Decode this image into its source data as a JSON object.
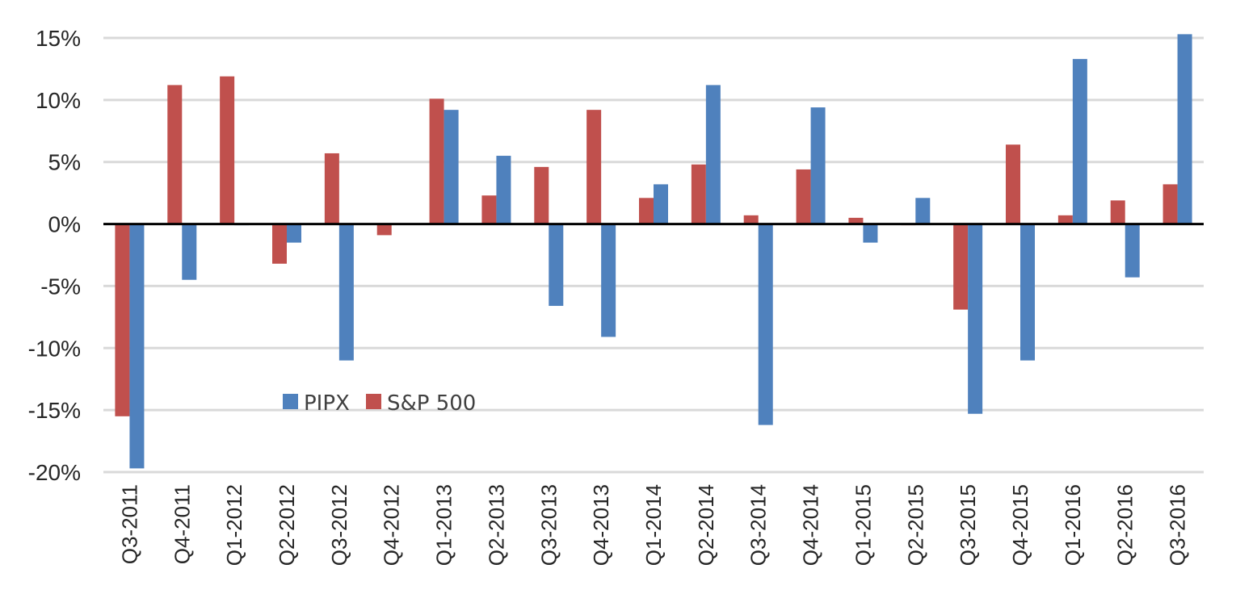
{
  "chart_data": {
    "type": "bar",
    "categories": [
      "Q3-2011",
      "Q4-2011",
      "Q1-2012",
      "Q2-2012",
      "Q3-2012",
      "Q4-2012",
      "Q1-2013",
      "Q2-2013",
      "Q3-2013",
      "Q4-2013",
      "Q1-2014",
      "Q2-2014",
      "Q3-2014",
      "Q4-2014",
      "Q1-2015",
      "Q2-2015",
      "Q3-2015",
      "Q4-2015",
      "Q1-2016",
      "Q2-2016",
      "Q3-2016"
    ],
    "series": [
      {
        "name": "S&P 500",
        "color": "#c0504d",
        "values": [
          -15.5,
          11.2,
          11.9,
          -3.2,
          5.7,
          -0.9,
          10.1,
          2.3,
          4.6,
          9.2,
          2.1,
          4.8,
          0.7,
          4.4,
          0.5,
          -0.1,
          -6.9,
          6.4,
          0.7,
          1.9,
          3.2
        ]
      },
      {
        "name": "PIPX",
        "color": "#4f81bd",
        "values": [
          -19.7,
          -4.5,
          -0.1,
          -1.5,
          -11.0,
          0.0,
          9.2,
          5.5,
          -6.6,
          -9.1,
          3.2,
          11.2,
          -16.2,
          9.4,
          -1.5,
          2.1,
          -15.3,
          -11.0,
          13.3,
          -4.3,
          15.3
        ]
      }
    ],
    "legend_order": [
      "PIPX",
      "S&P 500"
    ],
    "ylim": [
      -20,
      15
    ],
    "yticks": [
      15,
      10,
      5,
      0,
      -5,
      -10,
      -15,
      -20
    ],
    "ytick_labels": [
      "15%",
      "10%",
      "5%",
      "0%",
      "-5%",
      "-10%",
      "-15%",
      "-20%"
    ],
    "grid": true,
    "legend_position": "lower-left inside plot"
  }
}
